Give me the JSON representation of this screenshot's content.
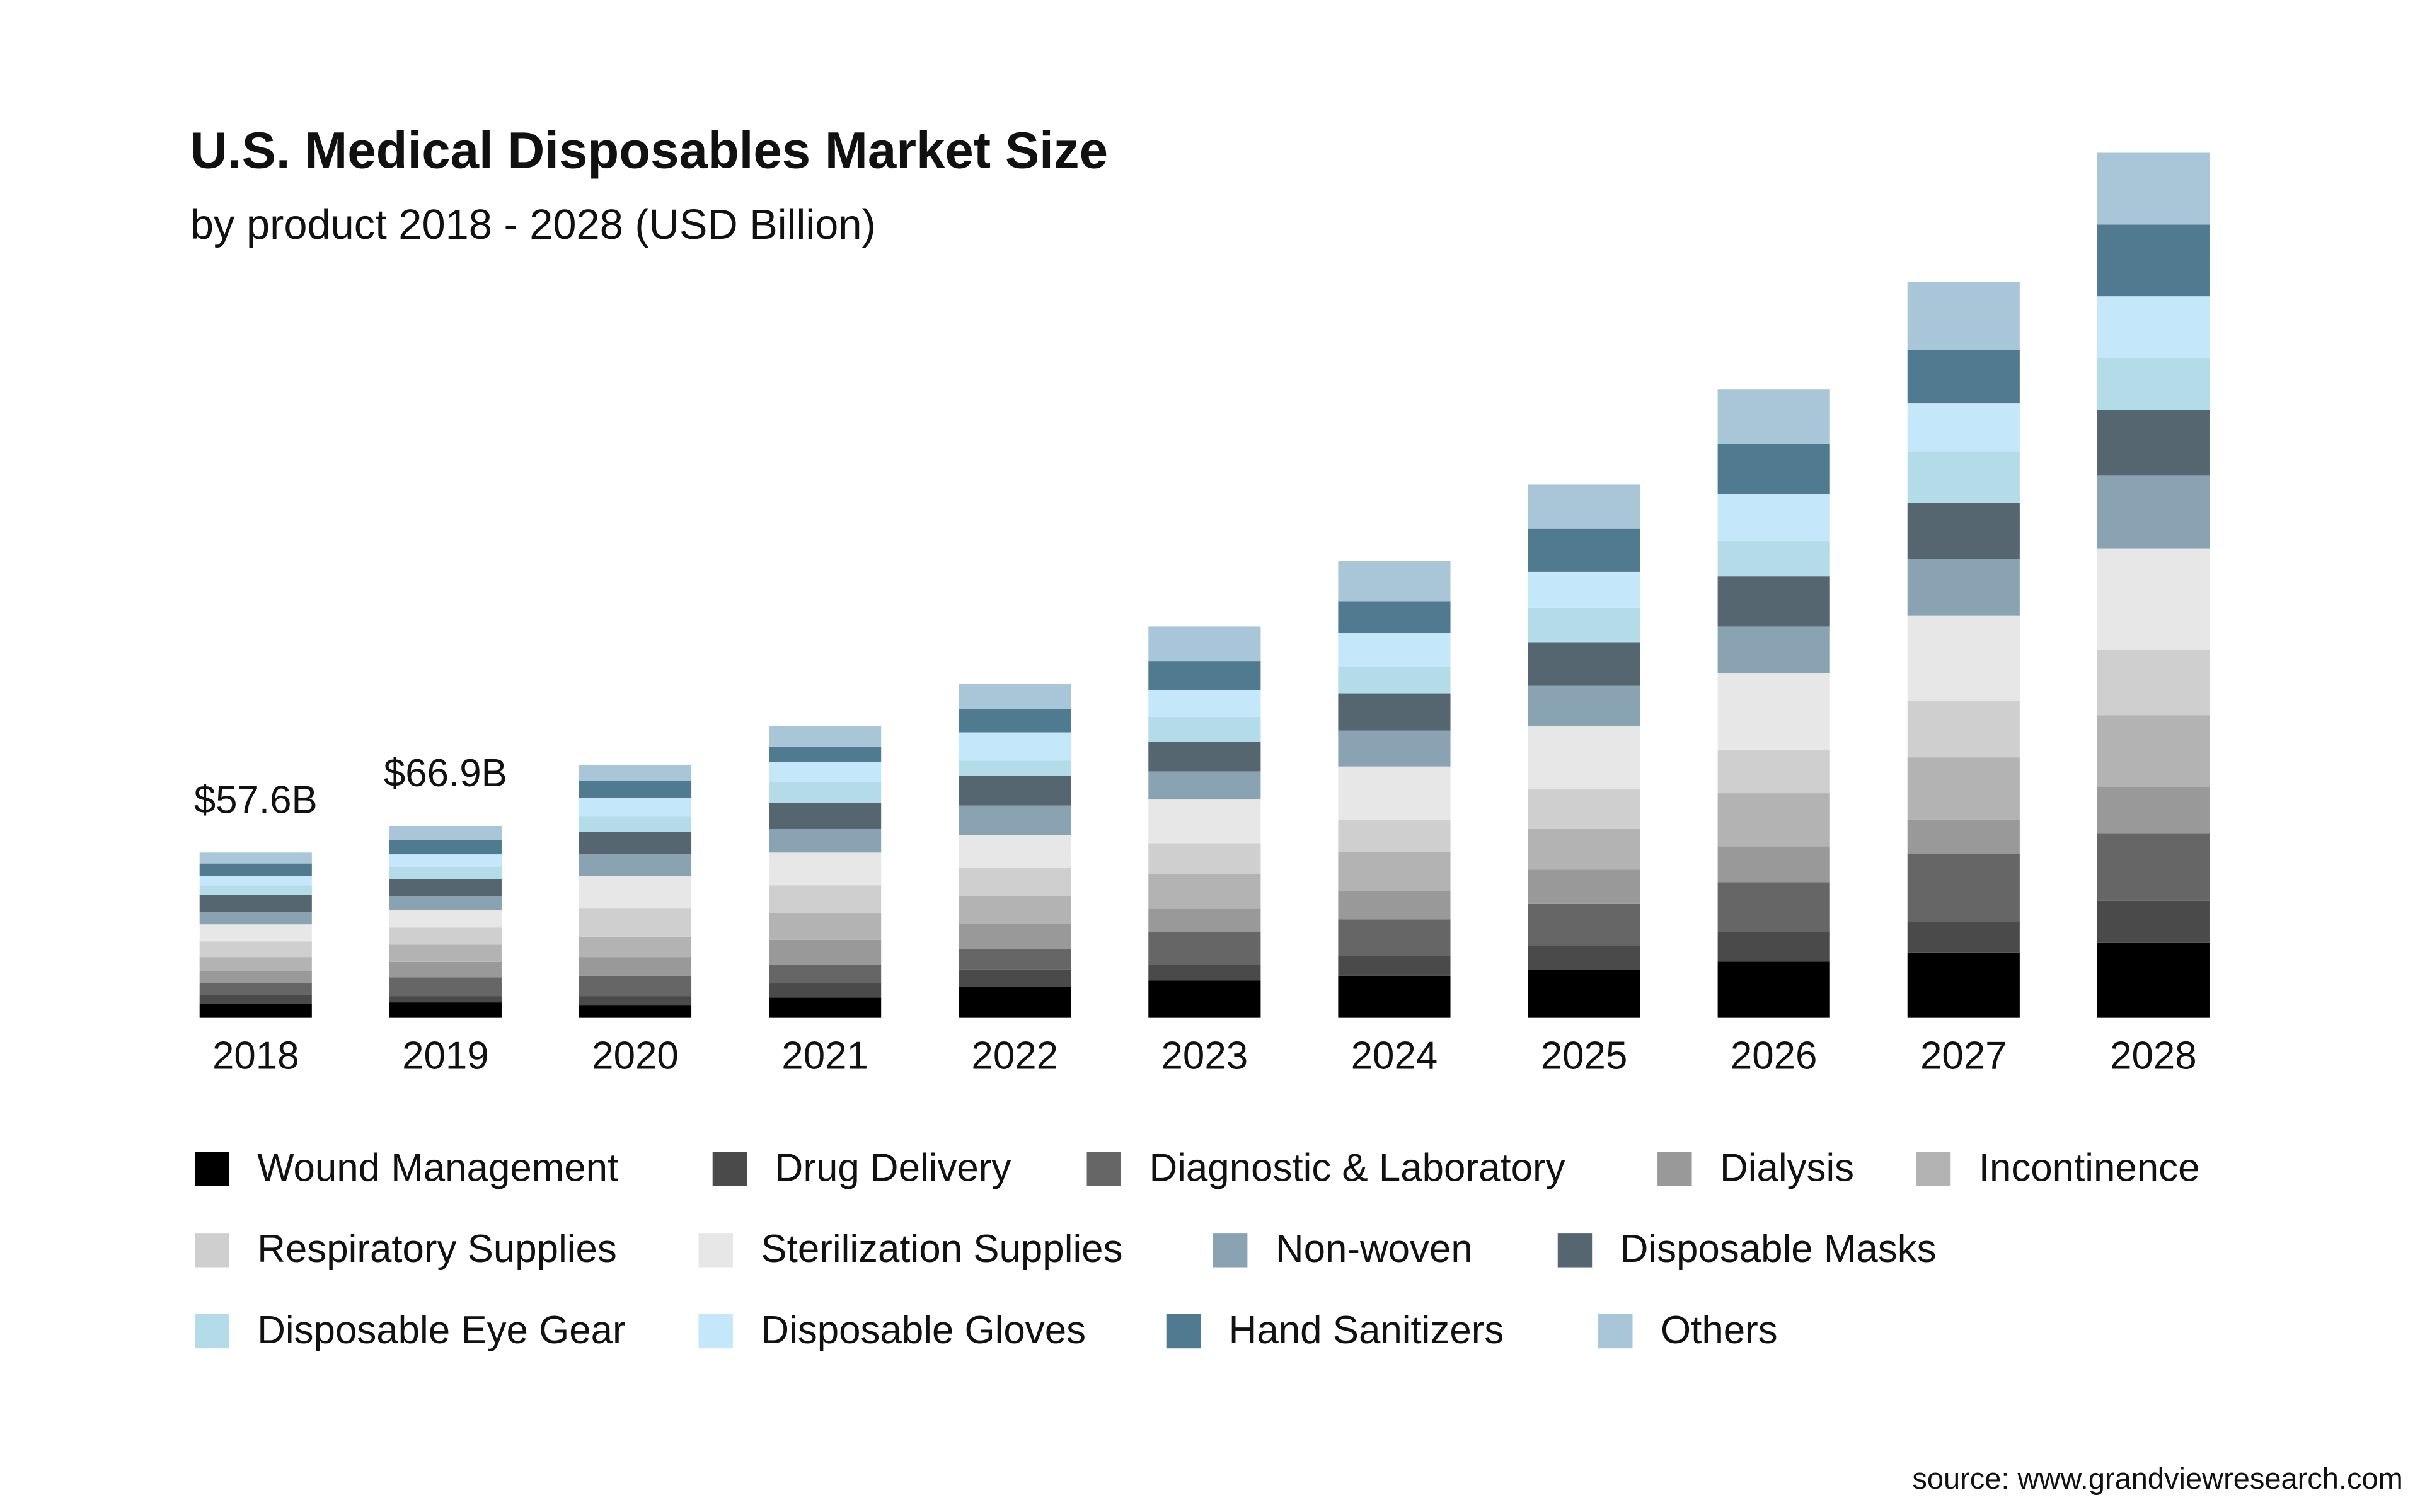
{
  "chart_data": {
    "type": "stacked-bar",
    "title": "U.S. Medical Disposables Market Size",
    "subtitle": "by product 2018 - 2028 (USD Billion)",
    "source": "source: www.grandviewresearch.com",
    "categories": [
      "2018",
      "2019",
      "2020",
      "2021",
      "2022",
      "2023",
      "2024",
      "2025",
      "2026",
      "2027",
      "2028"
    ],
    "series": [
      {
        "name": "Wound Management",
        "color": "#000000",
        "values": [
          4.9,
          5.4,
          4.3,
          7.1,
          10.9,
          13.0,
          14.7,
          16.8,
          19.6,
          22.8,
          26.1
        ]
      },
      {
        "name": "Drug Delivery",
        "color": "#4a4a4a",
        "values": [
          3.3,
          2.2,
          3.3,
          4.9,
          6.0,
          5.4,
          7.1,
          8.2,
          10.3,
          10.9,
          14.7
        ]
      },
      {
        "name": "Diagnostic & Laboratory",
        "color": "#666666",
        "values": [
          3.8,
          6.5,
          7.1,
          6.5,
          7.1,
          11.4,
          12.5,
          14.7,
          17.4,
          23.4,
          23.4
        ]
      },
      {
        "name": "Dialysis",
        "color": "#999999",
        "values": [
          4.3,
          5.4,
          6.5,
          8.7,
          8.7,
          8.2,
          9.8,
          12.0,
          12.5,
          12.0,
          16.3
        ]
      },
      {
        "name": "Incontinence",
        "color": "#b3b3b3",
        "values": [
          4.9,
          6.0,
          7.1,
          9.2,
          9.8,
          12.0,
          13.6,
          14.1,
          18.5,
          21.7,
          25.0
        ]
      },
      {
        "name": "Respiratory Supplies",
        "color": "#cfcfcf",
        "values": [
          5.4,
          6.0,
          9.8,
          9.8,
          9.8,
          10.9,
          11.4,
          14.1,
          15.2,
          19.6,
          22.8
        ]
      },
      {
        "name": "Sterilization Supplies",
        "color": "#e6e7e6",
        "values": [
          6.0,
          6.0,
          11.4,
          11.4,
          11.4,
          15.2,
          18.5,
          21.7,
          26.6,
          29.9,
          35.3
        ]
      },
      {
        "name": "Non-woven",
        "color": "#89a3b3",
        "values": [
          4.3,
          4.9,
          7.6,
          8.2,
          10.3,
          9.8,
          12.5,
          14.1,
          16.3,
          19.6,
          25.5
        ]
      },
      {
        "name": "Disposable Masks",
        "color": "#556670",
        "values": [
          6.0,
          6.0,
          7.6,
          9.2,
          10.3,
          10.3,
          13.0,
          15.2,
          17.4,
          19.6,
          22.8
        ]
      },
      {
        "name": "Disposable Eye Gear",
        "color": "#b3dbe8",
        "values": [
          3.3,
          4.3,
          5.4,
          7.1,
          5.4,
          8.7,
          9.2,
          12.0,
          12.5,
          17.9,
          17.9
        ]
      },
      {
        "name": "Disposable Gloves",
        "color": "#c4e7fa",
        "values": [
          3.3,
          4.3,
          6.5,
          7.1,
          9.8,
          9.2,
          12.0,
          12.5,
          16.3,
          16.8,
          21.7
        ]
      },
      {
        "name": "Hand Sanitizers",
        "color": "#4f7a8f",
        "values": [
          4.3,
          4.9,
          6.0,
          5.4,
          8.2,
          10.3,
          10.9,
          15.2,
          17.4,
          18.5,
          25.0
        ]
      },
      {
        "name": "Others",
        "color": "#a8c6d8",
        "values": [
          3.8,
          5.0,
          5.4,
          7.1,
          8.7,
          12.0,
          14.1,
          15.2,
          19.0,
          23.9,
          25.0
        ]
      }
    ],
    "total_labels": [
      {
        "category": "2018",
        "value": 57.6,
        "label": "$57.6B"
      },
      {
        "category": "2019",
        "value": 66.9,
        "label": "$66.9B"
      }
    ]
  }
}
